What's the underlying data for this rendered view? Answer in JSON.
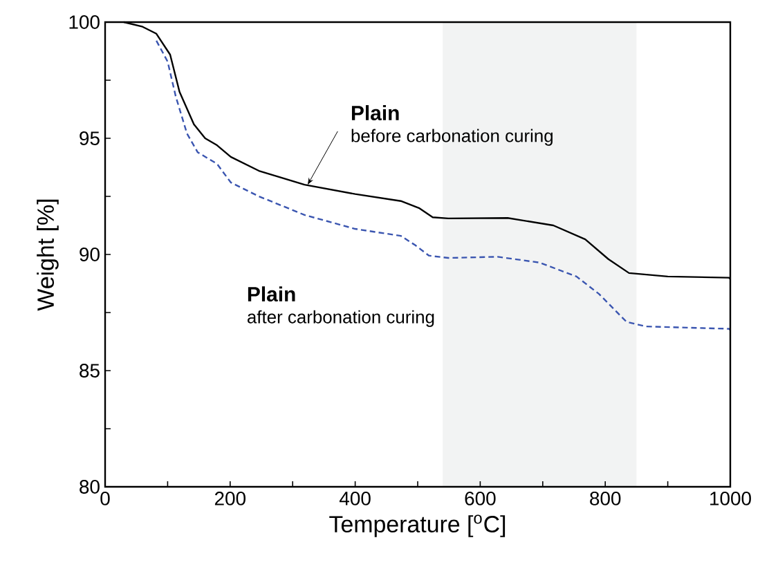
{
  "chart_data": {
    "type": "line",
    "xlabel": "Temperature [$^{o}$C]",
    "ylabel": "Weight [%]",
    "xlim": [
      0,
      1000
    ],
    "xticks": [
      0,
      {
        "value": 100,
        "label": null
      },
      200,
      {
        "value": 300,
        "label": null
      },
      400,
      {
        "value": 500,
        "label": null
      },
      600,
      {
        "value": 700,
        "label": null
      },
      800,
      {
        "value": 900,
        "label": null
      },
      1000
    ],
    "ylim": [
      80,
      100
    ],
    "yticks": [
      80,
      {
        "value": 82.5,
        "label": null
      },
      85,
      {
        "value": 87.5,
        "label": null
      },
      90,
      {
        "value": 92.5,
        "label": null
      },
      95,
      {
        "value": 97.5,
        "label": null
      },
      100
    ],
    "grid": false,
    "marker": "none",
    "bands": [
      {
        "axis": "x",
        "from": 540,
        "to": 850,
        "color": "#f2f3f3"
      }
    ],
    "series": [
      {
        "color": "#000000",
        "line_style": "solid",
        "x": [
          30,
          60,
          82,
          104,
          119,
          142,
          160,
          179,
          201,
          246,
          319,
          400,
          473,
          502,
          524,
          549,
          644,
          717,
          768,
          805,
          838,
          900,
          998,
          1000
        ],
        "values": [
          100,
          99.8,
          99.5,
          98.6,
          97.0,
          95.6,
          95.0,
          94.7,
          94.2,
          93.6,
          93.0,
          92.6,
          92.3,
          92.0,
          91.6,
          91.55,
          91.57,
          91.25,
          90.65,
          89.8,
          89.2,
          89.05,
          89.0,
          88.95
        ]
      },
      {
        "color": "#3a55b0",
        "line_style": "dashed",
        "x": [
          82,
          100,
          113,
          131,
          148,
          179,
          201,
          246,
          319,
          400,
          473,
          496,
          518,
          549,
          628,
          695,
          754,
          790,
          834,
          865,
          998,
          1000
        ],
        "values": [
          99.2,
          98.3,
          96.8,
          95.2,
          94.4,
          93.9,
          93.1,
          92.5,
          91.7,
          91.1,
          90.8,
          90.4,
          89.95,
          89.85,
          89.9,
          89.65,
          89.05,
          88.3,
          87.1,
          86.9,
          86.8,
          86.75
        ]
      }
    ],
    "annotations": [
      {
        "text": "**Plain**",
        "x": 324,
        "y": 93.0
      },
      "before carbonation curing",
      "**Plain**",
      "after carbonation curing"
    ]
  }
}
